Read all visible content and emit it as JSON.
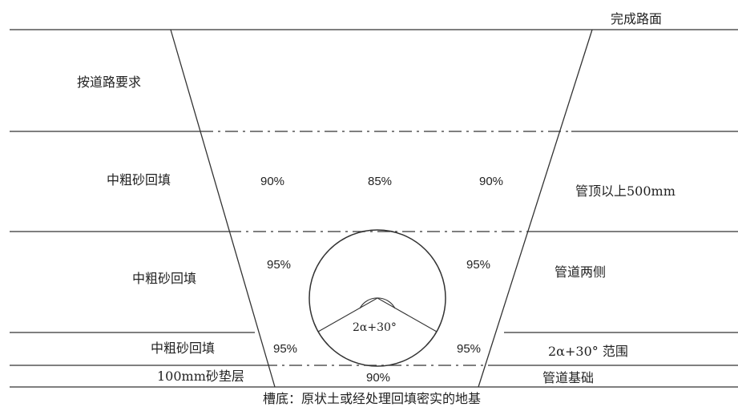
{
  "labels": {
    "road_surface": "完成路面",
    "road_req": "按道路要求",
    "fill_upper": "中粗砂回填",
    "fill_mid": "中粗砂回填",
    "fill_lower": "中粗砂回填",
    "sand_cushion": "100mm砂垫层",
    "pipe_top": "管顶以上500mm",
    "pipe_sides": "管道两侧",
    "range": "2α+30° 范围",
    "pipe_base": "管道基础",
    "trench_bottom": "槽底：原状土或经处理回填密实的地基"
  },
  "compaction": {
    "upper_left": "90%",
    "upper_center": "85%",
    "upper_right": "90%",
    "mid_left": "95%",
    "mid_right": "95%",
    "lower_left": "95%",
    "lower_right": "95%",
    "base_center": "90%"
  },
  "angle_label": "2α+30°"
}
